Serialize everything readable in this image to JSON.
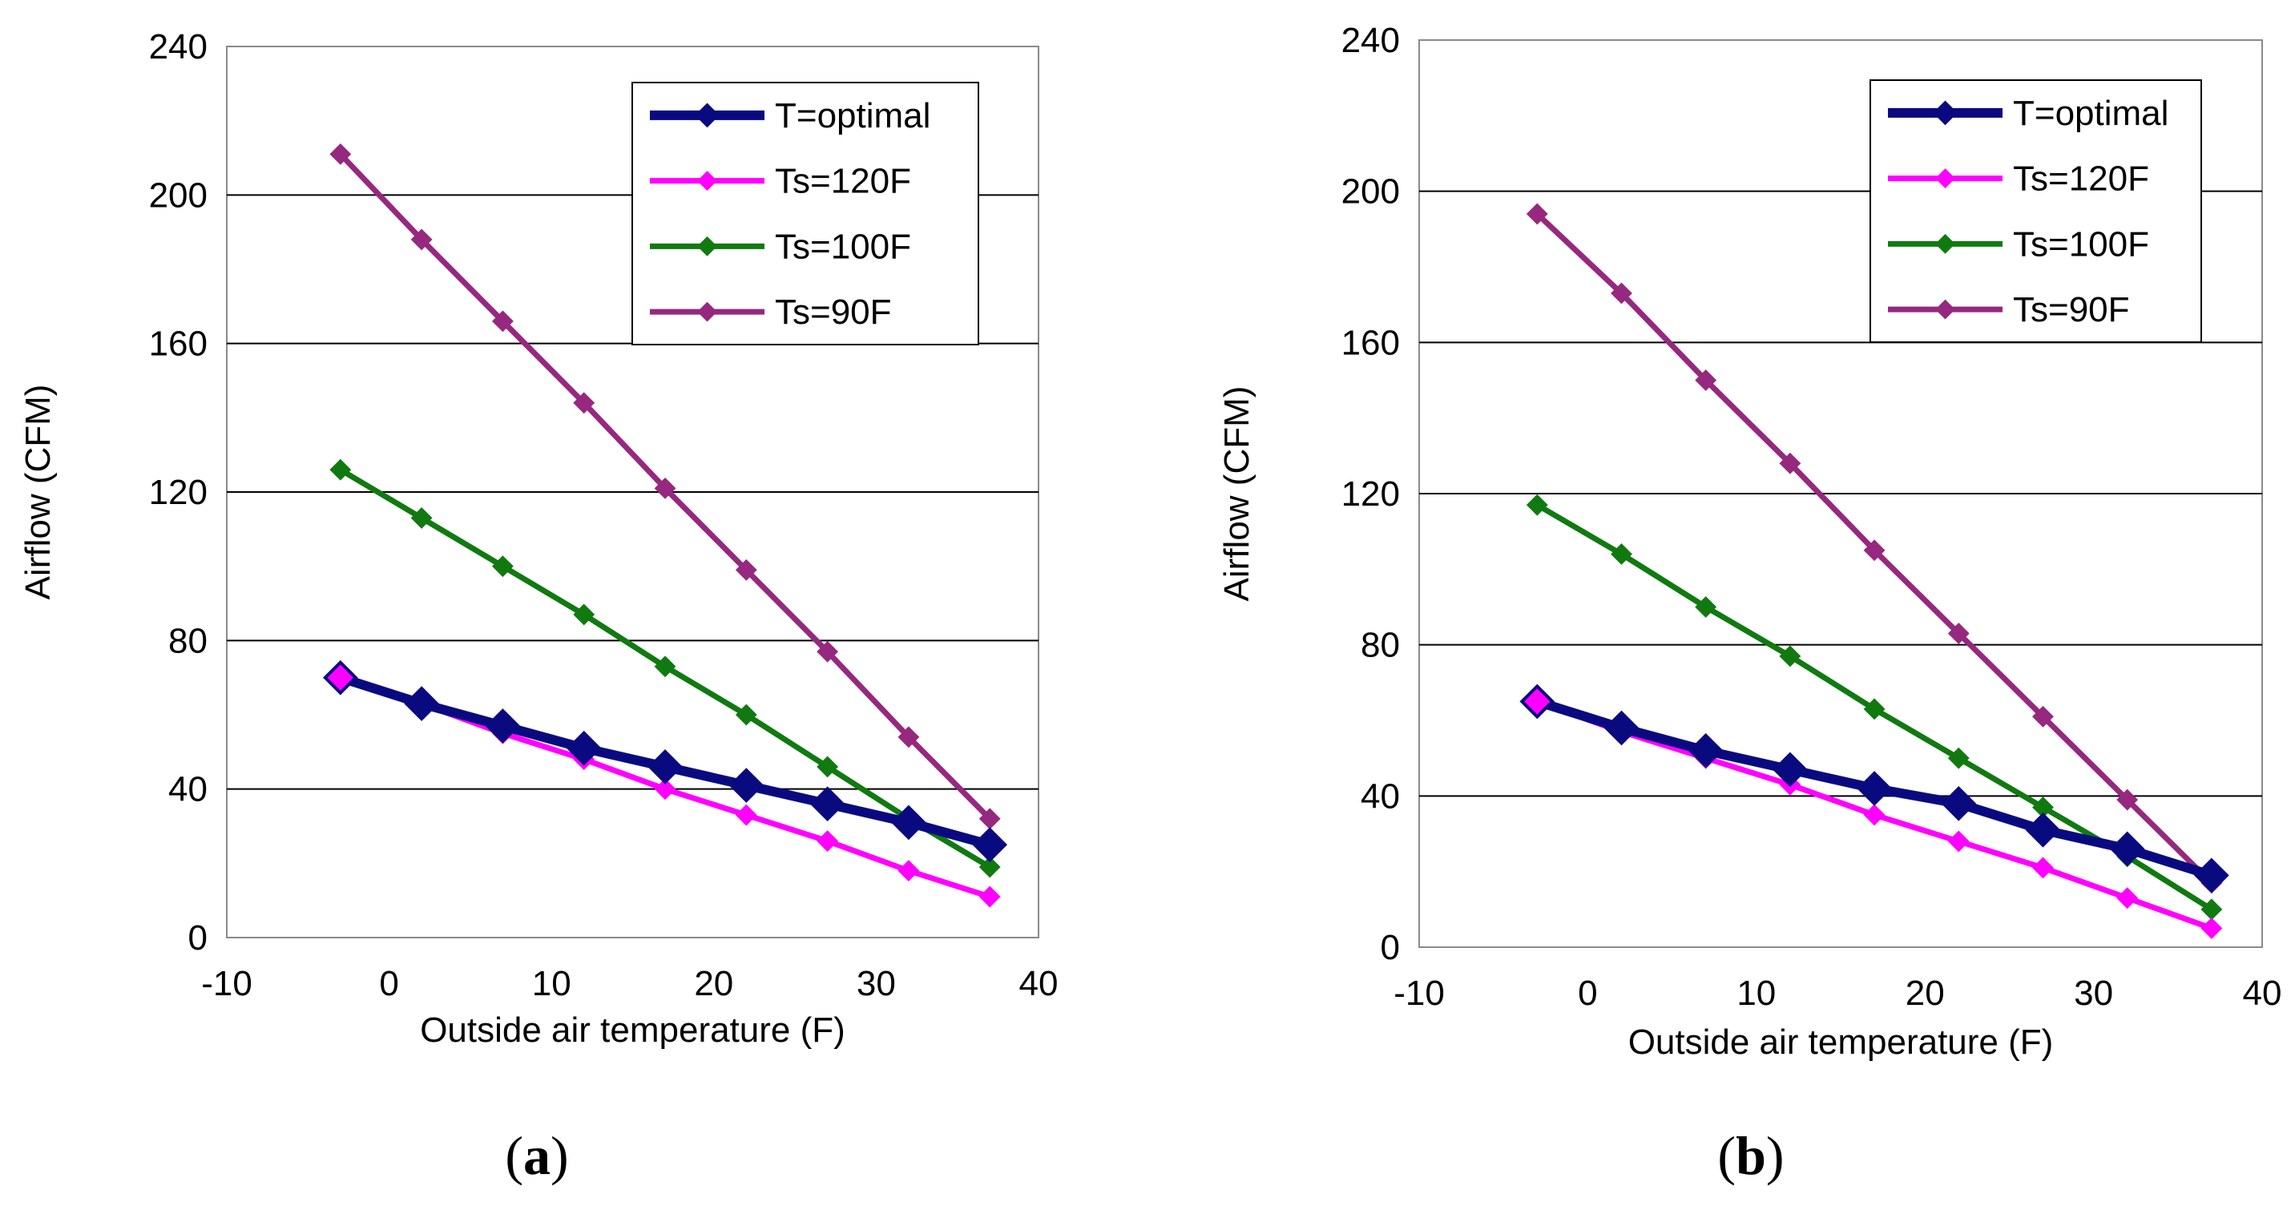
{
  "chart_data": [
    {
      "type": "line",
      "caption": {
        "open": "(",
        "letter": "a",
        "close": ")"
      },
      "xlabel": "Outside air temperature (F)",
      "ylabel": "Airflow (CFM)",
      "xlim": [
        -10,
        40
      ],
      "ylim": [
        0,
        240
      ],
      "xticks": [
        -10,
        0,
        10,
        20,
        30,
        40
      ],
      "yticks": [
        0,
        40,
        80,
        120,
        160,
        200,
        240
      ],
      "grid": "horizontal",
      "legend_position": "top-right",
      "x": [
        -3,
        2,
        7,
        12,
        17,
        22,
        27,
        32,
        37
      ],
      "series": [
        {
          "name": "T=optimal",
          "color": "#0A0A80",
          "values": [
            70,
            63,
            57,
            51,
            46,
            41,
            36,
            31,
            25
          ]
        },
        {
          "name": "Ts=120F",
          "color": "#FF00FF",
          "values": [
            70,
            63,
            55,
            48,
            40,
            33,
            26,
            18,
            11
          ]
        },
        {
          "name": "Ts=100F",
          "color": "#107A10",
          "values": [
            126,
            113,
            100,
            87,
            73,
            60,
            46,
            32,
            19
          ]
        },
        {
          "name": "Ts=90F",
          "color": "#96287F",
          "values": [
            211,
            188,
            166,
            144,
            121,
            99,
            77,
            54,
            32
          ]
        }
      ]
    },
    {
      "type": "line",
      "caption": {
        "open": "(",
        "letter": "b",
        "close": ")"
      },
      "xlabel": "Outside air temperature (F)",
      "ylabel": "Airflow (CFM)",
      "xlim": [
        -10,
        40
      ],
      "ylim": [
        0,
        240
      ],
      "xticks": [
        -10,
        0,
        10,
        20,
        30,
        40
      ],
      "yticks": [
        0,
        40,
        80,
        120,
        160,
        200,
        240
      ],
      "grid": "horizontal",
      "legend_position": "top-right",
      "x": [
        -3,
        2,
        7,
        12,
        17,
        22,
        27,
        32,
        37
      ],
      "series": [
        {
          "name": "T=optimal",
          "color": "#0A0A80",
          "values": [
            65,
            58,
            52,
            47,
            42,
            38,
            31,
            26,
            19
          ]
        },
        {
          "name": "Ts=120F",
          "color": "#FF00FF",
          "values": [
            65,
            57,
            50,
            43,
            35,
            28,
            21,
            13,
            5
          ]
        },
        {
          "name": "Ts=100F",
          "color": "#107A10",
          "values": [
            117,
            104,
            90,
            77,
            63,
            50,
            37,
            24,
            10
          ]
        },
        {
          "name": "Ts=90F",
          "color": "#96287F",
          "values": [
            194,
            173,
            150,
            128,
            105,
            83,
            61,
            39,
            17
          ]
        }
      ]
    }
  ]
}
